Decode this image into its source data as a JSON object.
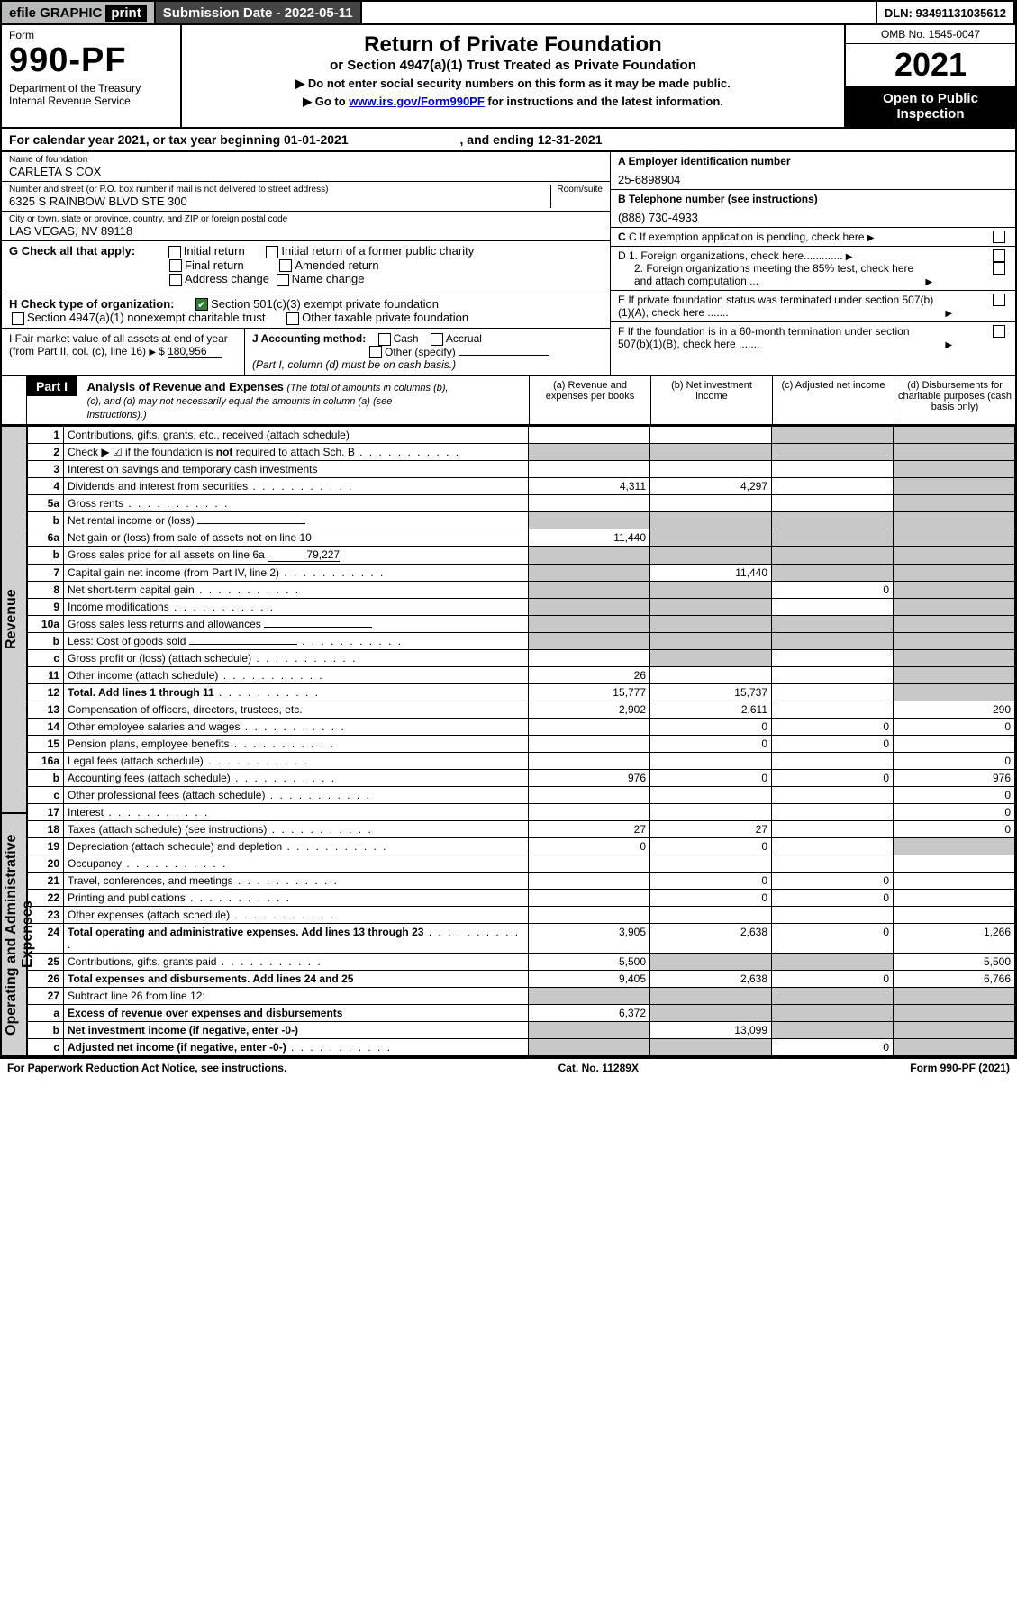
{
  "colors": {
    "black": "#000000",
    "white": "#ffffff",
    "header_gray": "#b8b9b9",
    "dark_gray": "#444444",
    "shade_gray": "#c8c8c8",
    "rot_gray": "#d0d0d0",
    "check_green": "#2e7d32",
    "link_blue": "#0000cc"
  },
  "topbar": {
    "efile": "efile GRAPHIC",
    "print": "print",
    "submission": "Submission Date - 2022-05-11",
    "dln": "DLN: 93491131035612"
  },
  "header": {
    "form_word": "Form",
    "form_no": "990-PF",
    "dept": "Department of the Treasury\nInternal Revenue Service",
    "title": "Return of Private Foundation",
    "subtitle": "or Section 4947(a)(1) Trust Treated as Private Foundation",
    "instr1": "▶ Do not enter social security numbers on this form as it may be made public.",
    "instr2_pre": "▶ Go to ",
    "instr2_link": "www.irs.gov/Form990PF",
    "instr2_post": " for instructions and the latest information.",
    "omb": "OMB No. 1545-0047",
    "year": "2021",
    "inspect": "Open to Public Inspection"
  },
  "calendar": {
    "pre": "For calendar year 2021, or tax year beginning ",
    "begin": "01-01-2021",
    "mid": " , and ending ",
    "end": "12-31-2021"
  },
  "entity": {
    "name_lbl": "Name of foundation",
    "name": "CARLETA S COX",
    "addr_lbl": "Number and street (or P.O. box number if mail is not delivered to street address)",
    "addr": "6325 S RAINBOW BLVD STE 300",
    "room_lbl": "Room/suite",
    "city_lbl": "City or town, state or province, country, and ZIP or foreign postal code",
    "city": "LAS VEGAS, NV  89118",
    "ein_lbl": "A Employer identification number",
    "ein": "25-6898904",
    "tel_lbl": "B Telephone number (see instructions)",
    "tel": "(888) 730-4933",
    "c_lbl": "C If exemption application is pending, check here",
    "d1": "D 1. Foreign organizations, check here.............",
    "d2": "2. Foreign organizations meeting the 85% test, check here and attach computation ...",
    "e": "E  If private foundation status was terminated under section 507(b)(1)(A), check here .......",
    "f": "F  If the foundation is in a 60-month termination under section 507(b)(1)(B), check here ......."
  },
  "g": {
    "label": "G Check all that apply:",
    "initial_return": "Initial return",
    "final_return": "Final return",
    "address_change": "Address change",
    "initial_former": "Initial return of a former public charity",
    "amended": "Amended return",
    "name_change": "Name change"
  },
  "h": {
    "label": "H Check type of organization:",
    "sec501": "Section 501(c)(3) exempt private foundation",
    "sec4947": "Section 4947(a)(1) nonexempt charitable trust",
    "other_tax": "Other taxable private foundation"
  },
  "i": {
    "label": "I Fair market value of all assets at end of year (from Part II, col. (c), line 16)",
    "arrow": "▶$",
    "value": "180,956"
  },
  "j": {
    "label": "J Accounting method:",
    "cash": "Cash",
    "accrual": "Accrual",
    "other": "Other (specify)",
    "note": "(Part I, column (d) must be on cash basis.)"
  },
  "part1": {
    "hdr": "Part I",
    "title": "Analysis of Revenue and Expenses",
    "title_note": " (The total of amounts in columns (b), (c), and (d) may not necessarily equal the amounts in column (a) (see instructions).)",
    "col_a": "(a)   Revenue and expenses per books",
    "col_b": "(b)   Net investment income",
    "col_c": "(c)   Adjusted net income",
    "col_d": "(d)   Disbursements for charitable purposes (cash basis only)"
  },
  "rot": {
    "revenue": "Revenue",
    "opex": "Operating and Administrative Expenses"
  },
  "rows": [
    {
      "ln": "1",
      "desc": "Contributions, gifts, grants, etc., received (attach schedule)",
      "a": "",
      "b": "",
      "c": "sh",
      "d": "sh"
    },
    {
      "ln": "2",
      "desc": "Check ▶ ☑ if the foundation is not required to attach Sch. B",
      "dots": true,
      "a": "sh",
      "b": "sh",
      "c": "sh",
      "d": "sh",
      "bold_not": true
    },
    {
      "ln": "3",
      "desc": "Interest on savings and temporary cash investments",
      "a": "",
      "b": "",
      "c": "",
      "d": "sh"
    },
    {
      "ln": "4",
      "desc": "Dividends and interest from securities",
      "dots": true,
      "a": "4,311",
      "b": "4,297",
      "c": "",
      "d": "sh"
    },
    {
      "ln": "5a",
      "desc": "Gross rents",
      "dots": true,
      "a": "",
      "b": "",
      "c": "",
      "d": "sh"
    },
    {
      "ln": "b",
      "desc": "Net rental income or (loss)",
      "uline": true,
      "a": "sh",
      "b": "sh",
      "c": "sh",
      "d": "sh"
    },
    {
      "ln": "6a",
      "desc": "Net gain or (loss) from sale of assets not on line 10",
      "a": "11,440",
      "b": "sh",
      "c": "sh",
      "d": "sh"
    },
    {
      "ln": "b",
      "desc": "Gross sales price for all assets on line 6a",
      "uline_val": "79,227",
      "a": "sh",
      "b": "sh",
      "c": "sh",
      "d": "sh"
    },
    {
      "ln": "7",
      "desc": "Capital gain net income (from Part IV, line 2)",
      "dots": true,
      "a": "sh",
      "b": "11,440",
      "c": "sh",
      "d": "sh"
    },
    {
      "ln": "8",
      "desc": "Net short-term capital gain",
      "dots": true,
      "a": "sh",
      "b": "sh",
      "c": "0",
      "d": "sh"
    },
    {
      "ln": "9",
      "desc": "Income modifications",
      "dots": true,
      "a": "sh",
      "b": "sh",
      "c": "",
      "d": "sh"
    },
    {
      "ln": "10a",
      "desc": "Gross sales less returns and allowances",
      "uline": true,
      "a": "sh",
      "b": "sh",
      "c": "sh",
      "d": "sh"
    },
    {
      "ln": "b",
      "desc": "Less: Cost of goods sold",
      "dots": true,
      "uline": true,
      "a": "sh",
      "b": "sh",
      "c": "sh",
      "d": "sh"
    },
    {
      "ln": "c",
      "desc": "Gross profit or (loss) (attach schedule)",
      "dots": true,
      "a": "",
      "b": "sh",
      "c": "",
      "d": "sh"
    },
    {
      "ln": "11",
      "desc": "Other income (attach schedule)",
      "dots": true,
      "a": "26",
      "b": "",
      "c": "",
      "d": "sh"
    },
    {
      "ln": "12",
      "desc": "Total. Add lines 1 through 11",
      "dots": true,
      "bold": true,
      "a": "15,777",
      "b": "15,737",
      "c": "",
      "d": "sh"
    },
    {
      "ln": "13",
      "desc": "Compensation of officers, directors, trustees, etc.",
      "a": "2,902",
      "b": "2,611",
      "c": "",
      "d": "290",
      "section": "opex"
    },
    {
      "ln": "14",
      "desc": "Other employee salaries and wages",
      "dots": true,
      "a": "",
      "b": "0",
      "c": "0",
      "d": "0"
    },
    {
      "ln": "15",
      "desc": "Pension plans, employee benefits",
      "dots": true,
      "a": "",
      "b": "0",
      "c": "0",
      "d": ""
    },
    {
      "ln": "16a",
      "desc": "Legal fees (attach schedule)",
      "dots": true,
      "a": "",
      "b": "",
      "c": "",
      "d": "0"
    },
    {
      "ln": "b",
      "desc": "Accounting fees (attach schedule)",
      "dots": true,
      "a": "976",
      "b": "0",
      "c": "0",
      "d": "976"
    },
    {
      "ln": "c",
      "desc": "Other professional fees (attach schedule)",
      "dots": true,
      "a": "",
      "b": "",
      "c": "",
      "d": "0"
    },
    {
      "ln": "17",
      "desc": "Interest",
      "dots": true,
      "a": "",
      "b": "",
      "c": "",
      "d": "0"
    },
    {
      "ln": "18",
      "desc": "Taxes (attach schedule) (see instructions)",
      "dots": true,
      "a": "27",
      "b": "27",
      "c": "",
      "d": "0"
    },
    {
      "ln": "19",
      "desc": "Depreciation (attach schedule) and depletion",
      "dots": true,
      "a": "0",
      "b": "0",
      "c": "",
      "d": "sh"
    },
    {
      "ln": "20",
      "desc": "Occupancy",
      "dots": true,
      "a": "",
      "b": "",
      "c": "",
      "d": ""
    },
    {
      "ln": "21",
      "desc": "Travel, conferences, and meetings",
      "dots": true,
      "a": "",
      "b": "0",
      "c": "0",
      "d": ""
    },
    {
      "ln": "22",
      "desc": "Printing and publications",
      "dots": true,
      "a": "",
      "b": "0",
      "c": "0",
      "d": ""
    },
    {
      "ln": "23",
      "desc": "Other expenses (attach schedule)",
      "dots": true,
      "a": "",
      "b": "",
      "c": "",
      "d": ""
    },
    {
      "ln": "24",
      "desc": "Total operating and administrative expenses. Add lines 13 through 23",
      "dots": true,
      "bold": true,
      "a": "3,905",
      "b": "2,638",
      "c": "0",
      "d": "1,266"
    },
    {
      "ln": "25",
      "desc": "Contributions, gifts, grants paid",
      "dots": true,
      "a": "5,500",
      "b": "sh",
      "c": "sh",
      "d": "5,500"
    },
    {
      "ln": "26",
      "desc": "Total expenses and disbursements. Add lines 24 and 25",
      "bold": true,
      "a": "9,405",
      "b": "2,638",
      "c": "0",
      "d": "6,766"
    },
    {
      "ln": "27",
      "desc": "Subtract line 26 from line 12:",
      "a": "sh",
      "b": "sh",
      "c": "sh",
      "d": "sh",
      "section": "bottom"
    },
    {
      "ln": "a",
      "desc": "Excess of revenue over expenses and disbursements",
      "bold": true,
      "a": "6,372",
      "b": "sh",
      "c": "sh",
      "d": "sh"
    },
    {
      "ln": "b",
      "desc": "Net investment income (if negative, enter -0-)",
      "bold": true,
      "a": "sh",
      "b": "13,099",
      "c": "sh",
      "d": "sh"
    },
    {
      "ln": "c",
      "desc": "Adjusted net income (if negative, enter -0-)",
      "dots": true,
      "bold": true,
      "a": "sh",
      "b": "sh",
      "c": "0",
      "d": "sh"
    }
  ],
  "footer": {
    "left": "For Paperwork Reduction Act Notice, see instructions.",
    "mid": "Cat. No. 11289X",
    "right": "Form 990-PF (2021)"
  }
}
